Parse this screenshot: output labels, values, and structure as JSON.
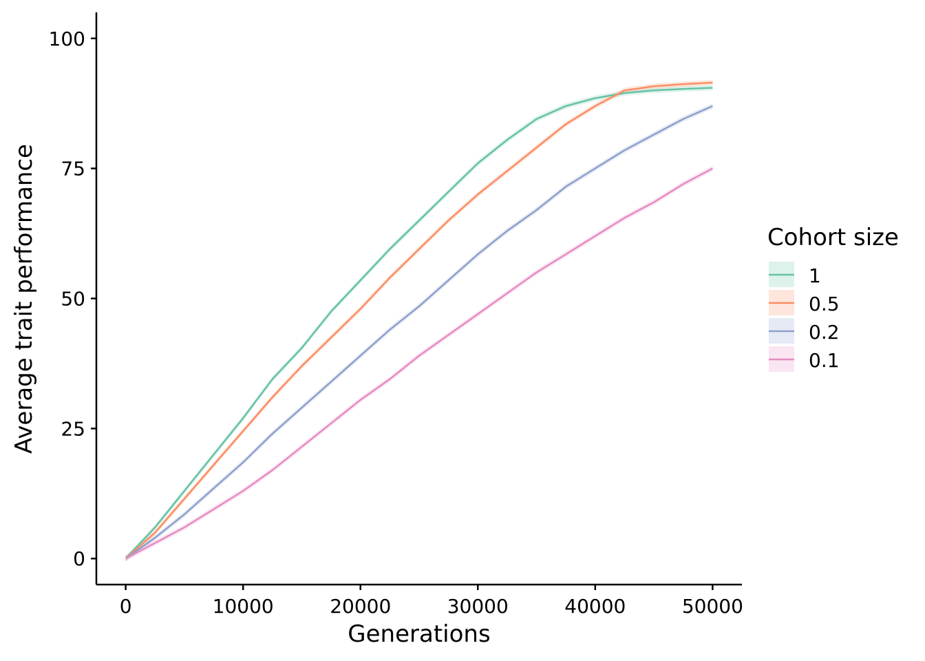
{
  "chart_data": {
    "type": "line",
    "xlabel": "Generations",
    "ylabel": "Average trait performance",
    "xlim": [
      -2500,
      52500
    ],
    "ylim": [
      -5,
      105
    ],
    "xticks": [
      0,
      10000,
      20000,
      30000,
      40000,
      50000
    ],
    "xtick_labels": [
      "0",
      "10000",
      "20000",
      "30000",
      "40000",
      "50000"
    ],
    "yticks": [
      0,
      25,
      50,
      75,
      100
    ],
    "ytick_labels": [
      "0",
      "25",
      "50",
      "75",
      "100"
    ],
    "grid": false,
    "legend": {
      "title": "Cohort size",
      "placement": "right"
    },
    "x": [
      0,
      2500,
      5000,
      7500,
      10000,
      12500,
      15000,
      17500,
      20000,
      22500,
      25000,
      27500,
      30000,
      32500,
      35000,
      37500,
      40000,
      42500,
      45000,
      47500,
      50000
    ],
    "series": [
      {
        "name": "1",
        "color": "#66C2A5",
        "values": [
          0,
          6,
          13,
          20,
          27,
          34.5,
          40.5,
          47.5,
          53.5,
          59.5,
          65,
          70.5,
          76,
          80.5,
          84.5,
          87,
          88.5,
          89.5,
          90,
          90.3,
          90.5
        ]
      },
      {
        "name": "0.5",
        "color": "#FC8D62",
        "values": [
          0,
          5,
          11.5,
          18,
          24.5,
          31,
          37,
          42.5,
          48,
          54,
          59.5,
          65,
          70,
          74.5,
          79,
          83.5,
          87,
          90,
          90.8,
          91.2,
          91.5
        ]
      },
      {
        "name": "0.2",
        "color": "#8DA0CB",
        "values": [
          0,
          4,
          8.5,
          13.5,
          18.5,
          24,
          29,
          34,
          39,
          44,
          48.5,
          53.5,
          58.5,
          63,
          67,
          71.5,
          75,
          78.5,
          81.5,
          84.5,
          87
        ]
      },
      {
        "name": "0.1",
        "color": "#E78AC3",
        "values": [
          0,
          3,
          6,
          9.5,
          13,
          17,
          21.5,
          26,
          30.5,
          34.5,
          39,
          43,
          47,
          51,
          55,
          58.5,
          62,
          65.5,
          68.5,
          72,
          75
        ]
      }
    ]
  }
}
